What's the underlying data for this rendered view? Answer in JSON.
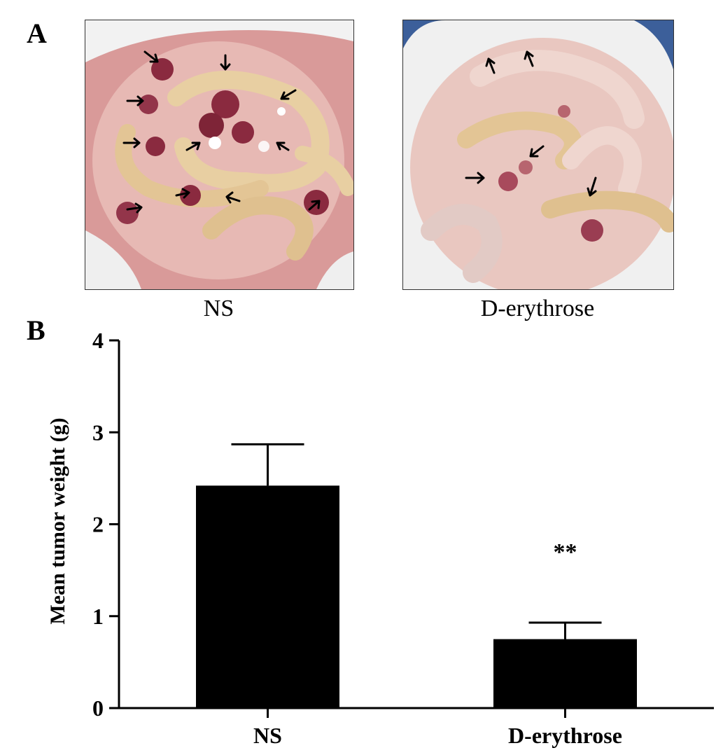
{
  "panel_a": {
    "label": "A",
    "images": [
      {
        "caption": "NS"
      },
      {
        "caption": "D-erythrose"
      }
    ]
  },
  "panel_b": {
    "label": "B"
  },
  "colors": {
    "bar": "#000000",
    "tissue_light": "#e9c7c0",
    "tissue_dark": "#b7656f",
    "tumor": "#8a2a3f",
    "intestine": "#e8cfa2",
    "fur": "#f2f2f2",
    "background_blue": "#3c5f9a"
  },
  "chart_data": {
    "type": "bar",
    "categories": [
      "NS",
      "D-erythrose"
    ],
    "values": [
      2.42,
      0.75
    ],
    "errors": [
      0.45,
      0.18
    ],
    "annotations": [
      {
        "category": "D-erythrose",
        "text": "**"
      }
    ],
    "title": "",
    "xlabel": "",
    "ylabel": "Mean tumor weight (g)",
    "ylim": [
      0,
      4
    ],
    "yticks": [
      "0",
      "1",
      "2",
      "3",
      "4"
    ],
    "grid": false,
    "legend": "none"
  }
}
